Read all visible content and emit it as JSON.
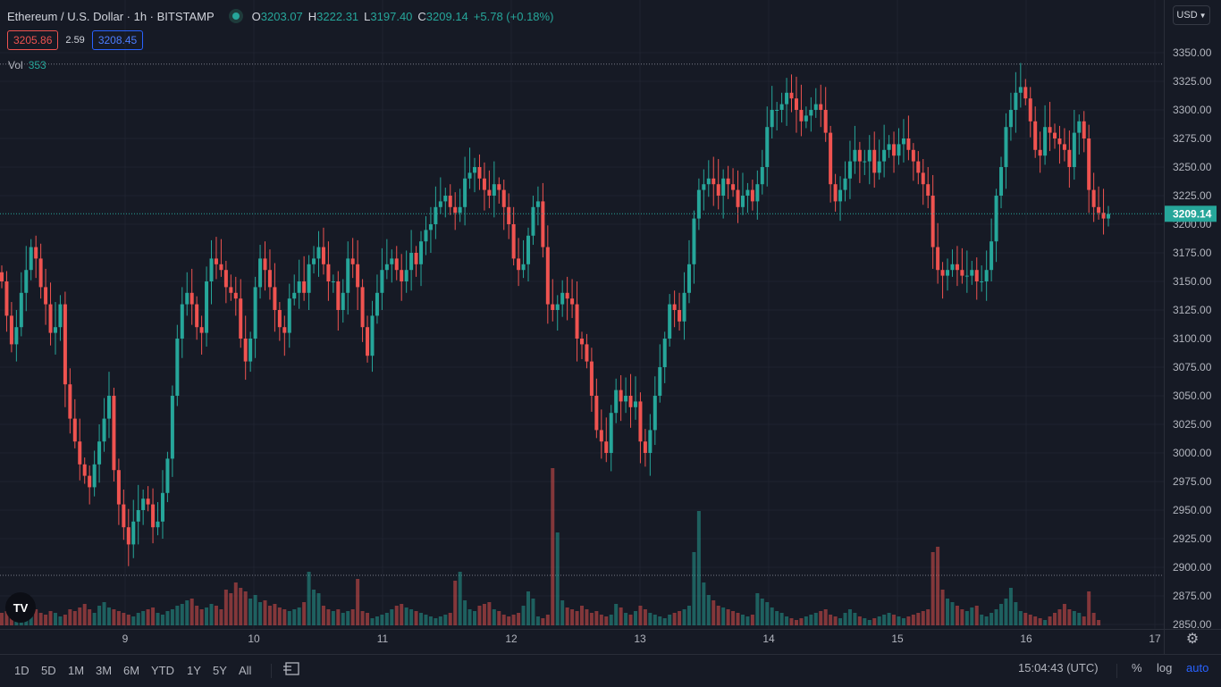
{
  "symbol": {
    "title": "Ethereum / U.S. Dollar · 1h · BITSTAMP",
    "ohlc": [
      {
        "label": "O",
        "value": "3203.07"
      },
      {
        "label": "H",
        "value": "3222.31"
      },
      {
        "label": "L",
        "value": "3197.40"
      },
      {
        "label": "C",
        "value": "3209.14"
      }
    ],
    "change": "+5.78 (+0.18%)"
  },
  "trade": {
    "bid": "3205.86",
    "spread": "2.59",
    "ask": "3208.45"
  },
  "volume": {
    "label": "Vol",
    "value": "353"
  },
  "currency": "USD",
  "last_price": "3209.14",
  "colors": {
    "up": "#26a69a",
    "down": "#ef5350",
    "background": "#161a25",
    "grid": "#1f2330",
    "accent": "#2962ff"
  },
  "bottom_toolbar": {
    "ranges": [
      "1D",
      "5D",
      "1M",
      "3M",
      "6M",
      "YTD",
      "1Y",
      "5Y",
      "All"
    ],
    "compare_icon": "compare-icon",
    "time": "15:04:43 (UTC)",
    "percent_label": "%",
    "log_label": "log",
    "auto_label": "auto"
  },
  "logo_text": "TV",
  "chart_data": {
    "type": "candlestick",
    "price_axis_ticks": [
      3350,
      3325,
      3300,
      3275,
      3250,
      3225,
      3200,
      3175,
      3150,
      3125,
      3100,
      3075,
      3050,
      3025,
      3000,
      2975,
      2950,
      2925,
      2900,
      2875,
      2850
    ],
    "price_axis_range": [
      2845,
      3375
    ],
    "time_axis_labels": [
      "9",
      "10",
      "11",
      "12",
      "13",
      "14",
      "15",
      "16",
      "17"
    ],
    "high_reference": 3340,
    "low_reference": 2893,
    "current_price": 3209.14,
    "close_series_approx": [
      3150,
      3120,
      3095,
      3110,
      3140,
      3160,
      3180,
      3170,
      3145,
      3130,
      3105,
      3110,
      3130,
      3060,
      3030,
      3010,
      2990,
      2980,
      2970,
      2990,
      3010,
      3030,
      3050,
      2985,
      2955,
      2935,
      2920,
      2940,
      2950,
      2960,
      2955,
      2935,
      2940,
      2965,
      2995,
      3050,
      3100,
      3130,
      3140,
      3130,
      3110,
      3105,
      3150,
      3170,
      3165,
      3160,
      3145,
      3140,
      3135,
      3100,
      3080,
      3100,
      3145,
      3170,
      3160,
      3145,
      3125,
      3110,
      3105,
      3135,
      3140,
      3150,
      3140,
      3165,
      3170,
      3180,
      3165,
      3150,
      3150,
      3125,
      3140,
      3170,
      3165,
      3145,
      3110,
      3085,
      3120,
      3140,
      3160,
      3165,
      3170,
      3160,
      3150,
      3160,
      3175,
      3165,
      3185,
      3195,
      3200,
      3215,
      3220,
      3225,
      3215,
      3210,
      3215,
      3240,
      3245,
      3250,
      3240,
      3230,
      3225,
      3235,
      3230,
      3215,
      3200,
      3170,
      3160,
      3165,
      3190,
      3215,
      3220,
      3180,
      3130,
      3125,
      3130,
      3140,
      3135,
      3130,
      3100,
      3095,
      3080,
      3050,
      3020,
      3010,
      3000,
      3035,
      3055,
      3045,
      3050,
      3040,
      3045,
      3010,
      3000,
      3020,
      3050,
      3075,
      3100,
      3130,
      3125,
      3115,
      3140,
      3165,
      3205,
      3230,
      3235,
      3240,
      3235,
      3225,
      3240,
      3235,
      3230,
      3215,
      3225,
      3230,
      3220,
      3235,
      3250,
      3285,
      3300,
      3300,
      3305,
      3315,
      3310,
      3300,
      3290,
      3295,
      3300,
      3305,
      3300,
      3280,
      3235,
      3220,
      3230,
      3240,
      3255,
      3265,
      3255,
      3255,
      3265,
      3245,
      3255,
      3265,
      3270,
      3260,
      3270,
      3275,
      3265,
      3255,
      3245,
      3235,
      3225,
      3180,
      3160,
      3155,
      3160,
      3165,
      3160,
      3155,
      3155,
      3160,
      3150,
      3150,
      3160,
      3185,
      3225,
      3250,
      3285,
      3300,
      3315,
      3320,
      3310,
      3290,
      3265,
      3260,
      3285,
      3280,
      3275,
      3270,
      3265,
      3250,
      3280,
      3290,
      3275,
      3230,
      3215,
      3210,
      3205,
      3209
    ],
    "volume_series_approx": [
      14,
      16,
      12,
      18,
      20,
      15,
      22,
      18,
      14,
      12,
      16,
      14,
      10,
      12,
      18,
      16,
      20,
      24,
      18,
      14,
      22,
      26,
      20,
      18,
      16,
      14,
      12,
      10,
      14,
      16,
      18,
      20,
      14,
      12,
      16,
      18,
      22,
      24,
      28,
      30,
      22,
      18,
      20,
      24,
      22,
      18,
      40,
      36,
      48,
      42,
      38,
      30,
      34,
      26,
      28,
      22,
      24,
      20,
      18,
      16,
      18,
      20,
      26,
      60,
      40,
      36,
      22,
      18,
      16,
      18,
      14,
      16,
      18,
      52,
      16,
      14,
      8,
      10,
      12,
      14,
      18,
      22,
      24,
      20,
      18,
      16,
      14,
      12,
      10,
      8,
      10,
      12,
      14,
      50,
      60,
      28,
      18,
      16,
      22,
      24,
      26,
      18,
      16,
      12,
      10,
      12,
      14,
      22,
      38,
      30,
      10,
      8,
      12,
      176,
      104,
      28,
      20,
      18,
      16,
      22,
      18,
      14,
      16,
      12,
      10,
      12,
      24,
      20,
      14,
      12,
      16,
      22,
      18,
      14,
      12,
      10,
      8,
      12,
      14,
      16,
      18,
      22,
      82,
      128,
      48,
      34,
      28,
      22,
      20,
      18,
      16,
      14,
      12,
      10,
      12,
      36,
      30,
      26,
      20,
      16,
      14,
      10,
      8,
      6,
      8,
      10,
      12,
      14,
      16,
      18,
      12,
      10,
      8,
      14,
      18,
      14,
      10,
      8,
      6,
      8,
      10,
      12,
      14,
      12,
      10,
      8,
      10,
      12,
      14,
      16,
      18,
      82,
      88,
      40,
      30,
      26,
      22,
      18,
      16,
      20,
      22,
      12,
      10,
      14,
      18,
      24,
      30,
      42,
      26,
      16,
      14,
      12,
      10,
      8,
      6,
      10,
      14,
      18,
      24,
      18,
      16,
      14,
      10,
      38,
      14,
      6
    ]
  }
}
